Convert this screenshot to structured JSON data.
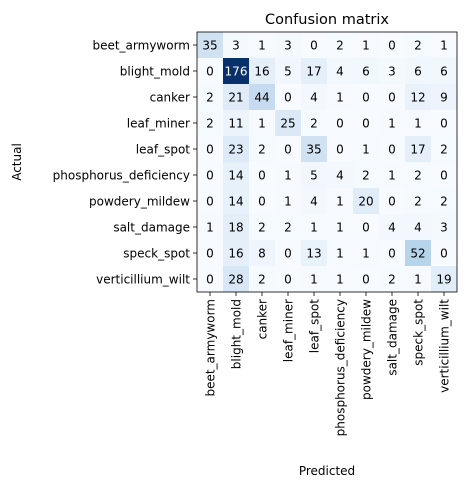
{
  "chart_data": {
    "type": "heatmap",
    "title": "Confusion matrix",
    "xlabel": "Predicted",
    "ylabel": "Actual",
    "colormap": "Blues",
    "color_low": "#f7fbff",
    "color_high": "#08306b",
    "text_color_dark": "#000000",
    "text_color_light": "#ffffff",
    "labels": [
      "beet_armyworm",
      "blight_mold",
      "canker",
      "leaf_miner",
      "leaf_spot",
      "phosphorus_deficiency",
      "powdery_mildew",
      "salt_damage",
      "speck_spot",
      "verticillium_wilt"
    ],
    "matrix": [
      [
        35,
        3,
        1,
        3,
        0,
        2,
        1,
        0,
        2,
        1
      ],
      [
        0,
        176,
        16,
        5,
        17,
        4,
        6,
        3,
        6,
        6
      ],
      [
        2,
        21,
        44,
        0,
        4,
        1,
        0,
        0,
        12,
        9
      ],
      [
        2,
        11,
        1,
        25,
        2,
        0,
        0,
        1,
        1,
        0
      ],
      [
        0,
        23,
        2,
        0,
        35,
        0,
        1,
        0,
        17,
        2
      ],
      [
        0,
        14,
        0,
        1,
        5,
        4,
        2,
        1,
        2,
        0
      ],
      [
        0,
        14,
        0,
        1,
        4,
        1,
        20,
        0,
        2,
        2
      ],
      [
        1,
        18,
        2,
        2,
        1,
        1,
        0,
        4,
        4,
        3
      ],
      [
        0,
        16,
        8,
        0,
        13,
        1,
        1,
        0,
        52,
        0
      ],
      [
        0,
        28,
        2,
        0,
        1,
        1,
        0,
        2,
        1,
        19
      ]
    ]
  }
}
